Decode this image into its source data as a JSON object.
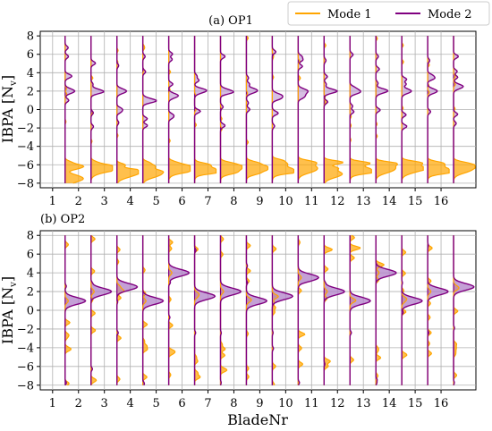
{
  "legend": {
    "items": [
      {
        "label": "Mode 1",
        "color": "#FFA500"
      },
      {
        "label": "Mode 2",
        "color": "#800080"
      }
    ],
    "placement": "top-right"
  },
  "colors": {
    "mode1": "#FFA500",
    "mode2": "#800080",
    "fill_mode1": "#FFA500",
    "fill_mode2": "#B080C8"
  },
  "chart_data": [
    {
      "type": "area",
      "title": "(a) OP1",
      "ylabel": "IBPA [N_v]",
      "xlabel": "",
      "ylim": [
        -8.5,
        8.5
      ],
      "yticks": [
        8,
        6,
        4,
        2,
        0,
        -2,
        -4,
        -6,
        -8
      ],
      "ytick_labels": [
        "8",
        "6",
        "4",
        "2",
        "0",
        "−2",
        "−4",
        "−6",
        "−8"
      ],
      "categories": [
        "1",
        "2",
        "3",
        "4",
        "5",
        "6",
        "7",
        "8",
        "9",
        "10",
        "11",
        "12",
        "13",
        "14",
        "15",
        "16"
      ],
      "grid": true,
      "series": [
        {
          "name": "Mode 1",
          "dominant_ibpa": [
            -7.5,
            -6.5,
            -7.0,
            -7.0,
            -6.5,
            -6.5,
            -6.5,
            -6.5,
            -6.5,
            -6.5,
            -7.0,
            -6.5,
            -6.5,
            -6.5,
            -6.5,
            -6.5
          ]
        },
        {
          "name": "Mode 2",
          "dominant_ibpa": [
            2.0,
            2.0,
            2.0,
            1.0,
            1.5,
            2.0,
            2.0,
            2.0,
            1.5,
            2.0,
            2.0,
            2.0,
            2.0,
            2.0,
            2.0,
            2.5
          ]
        }
      ]
    },
    {
      "type": "area",
      "title": "(b) OP2",
      "ylabel": "IBPA [N_v]",
      "xlabel": "BladeNr",
      "ylim": [
        -8.5,
        8.5
      ],
      "yticks": [
        8,
        6,
        4,
        2,
        0,
        -2,
        -4,
        -6,
        -8
      ],
      "ytick_labels": [
        "8",
        "6",
        "4",
        "2",
        "0",
        "−2",
        "−4",
        "−6",
        "−8"
      ],
      "categories": [
        "1",
        "2",
        "3",
        "4",
        "5",
        "6",
        "7",
        "8",
        "9",
        "10",
        "11",
        "12",
        "13",
        "14",
        "15",
        "16"
      ],
      "grid": true,
      "series": [
        {
          "name": "Mode 1",
          "dominant_ibpa": [
            1.0,
            2.0,
            2.5,
            1.0,
            4.0,
            1.5,
            2.0,
            1.0,
            1.5,
            3.5,
            2.0,
            1.0,
            4.0,
            1.0,
            2.0,
            2.5
          ]
        },
        {
          "name": "Mode 2",
          "dominant_ibpa": [
            1.0,
            2.0,
            2.5,
            1.0,
            4.0,
            1.5,
            2.0,
            1.0,
            1.5,
            3.5,
            2.0,
            1.0,
            4.0,
            1.0,
            2.0,
            2.5
          ]
        }
      ]
    }
  ]
}
